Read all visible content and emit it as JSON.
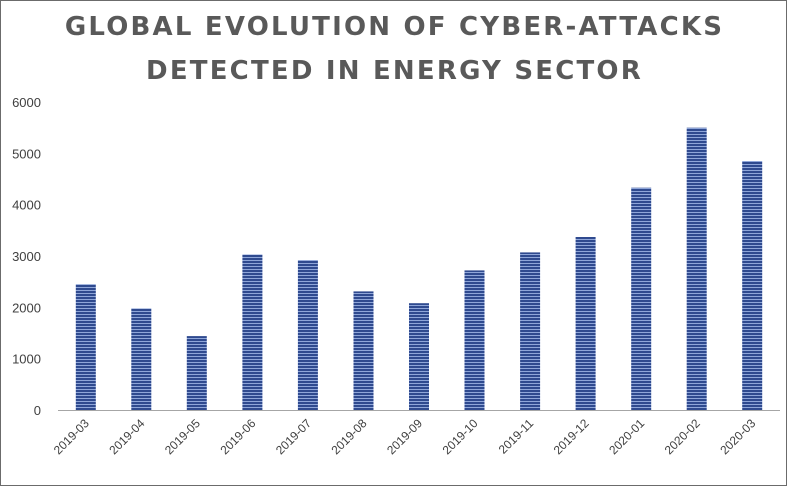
{
  "chart_data": {
    "type": "bar",
    "title_lines": [
      "GLOBAL EVOLUTION OF CYBER-ATTACKS",
      "DETECTED IN ENERGY SECTOR"
    ],
    "categories": [
      "2019-03",
      "2019-04",
      "2019-05",
      "2019-06",
      "2019-07",
      "2019-08",
      "2019-09",
      "2019-10",
      "2019-11",
      "2019-12",
      "2020-01",
      "2020-02",
      "2020-03"
    ],
    "values": [
      2450,
      1980,
      1440,
      3030,
      2920,
      2310,
      2080,
      2720,
      3070,
      3370,
      4330,
      5500,
      4850
    ],
    "y_ticks": [
      0,
      1000,
      2000,
      3000,
      4000,
      5000,
      6000
    ],
    "ylim": [
      0,
      6000
    ],
    "grid": false,
    "legend": "none",
    "bar_color": "#2F4A8F",
    "bar_stripe_color": "#8FA6D9",
    "axis_color": "#a6a6a6"
  }
}
